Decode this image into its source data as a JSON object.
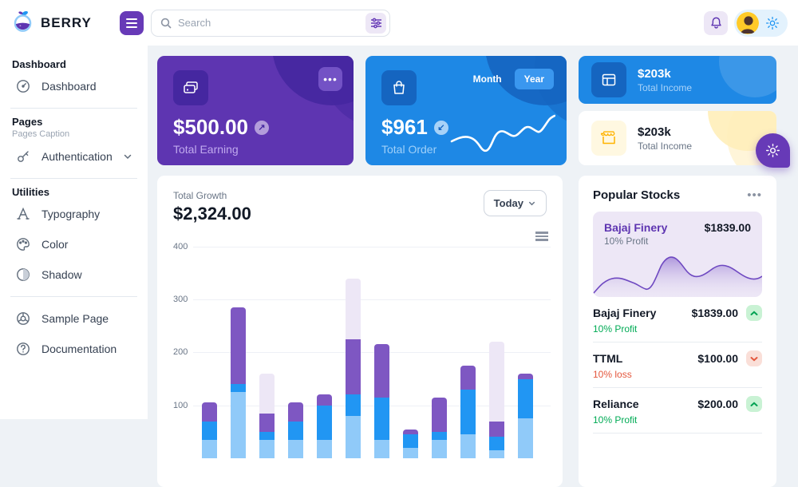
{
  "brand": {
    "name": "BERRY"
  },
  "topbar": {
    "search_placeholder": "Search"
  },
  "sidebar": {
    "groups": [
      {
        "title": "Dashboard",
        "items": [
          {
            "label": "Dashboard"
          }
        ]
      },
      {
        "title": "Pages",
        "caption": "Pages Caption",
        "items": [
          {
            "label": "Authentication"
          }
        ]
      },
      {
        "title": "Utilities",
        "items": [
          {
            "label": "Typography"
          },
          {
            "label": "Color"
          },
          {
            "label": "Shadow"
          }
        ]
      },
      {
        "items": [
          {
            "label": "Sample Page"
          },
          {
            "label": "Documentation"
          }
        ]
      }
    ]
  },
  "cards": {
    "earning": {
      "value": "$500.00",
      "label": "Total Earning"
    },
    "order": {
      "value": "$961",
      "label": "Total Order",
      "toggle": [
        "Month",
        "Year"
      ],
      "active_toggle": "Year"
    },
    "income_dark": {
      "value": "$203k",
      "label": "Total Income"
    },
    "income_light": {
      "value": "$203k",
      "label": "Total Income"
    }
  },
  "growth": {
    "title": "Total Growth",
    "value": "$2,324.00",
    "range_label": "Today"
  },
  "chart_data": {
    "type": "bar",
    "stacked": true,
    "bar_count": 12,
    "ylim": [
      0,
      400
    ],
    "yticks": [
      100,
      200,
      300,
      400
    ],
    "grid": true,
    "series": [
      {
        "color": "#90caf9",
        "values": [
          35,
          125,
          35,
          35,
          35,
          80,
          35,
          20,
          35,
          45,
          15,
          75
        ]
      },
      {
        "color": "#2196f3",
        "values": [
          35,
          15,
          15,
          35,
          65,
          40,
          80,
          25,
          15,
          85,
          25,
          75
        ]
      },
      {
        "color": "#7e57c2",
        "values": [
          35,
          145,
          35,
          35,
          20,
          105,
          100,
          10,
          65,
          45,
          30,
          10
        ]
      },
      {
        "color": "#ede7f6",
        "values": [
          0,
          0,
          75,
          0,
          0,
          115,
          0,
          0,
          0,
          0,
          150,
          0
        ]
      }
    ]
  },
  "stocks": {
    "title": "Popular Stocks",
    "featured": {
      "name": "Bajaj Finery",
      "price": "$1839.00",
      "change": "10% Profit"
    },
    "items": [
      {
        "name": "Bajaj Finery",
        "price": "$1839.00",
        "change": "10% Profit",
        "direction": "up"
      },
      {
        "name": "TTML",
        "price": "$100.00",
        "change": "10% loss",
        "direction": "down"
      },
      {
        "name": "Reliance",
        "price": "$200.00",
        "change": "10% Profit",
        "direction": "up"
      }
    ]
  },
  "colors": {
    "brand_purple": "#673ab7",
    "purple_dark": "#5e35b1",
    "purple_deep": "#4527a0",
    "blue": "#2196f3",
    "blue_dark": "#1e88e5",
    "blue_deep": "#1565c0",
    "warning": "#ffc107",
    "success": "#00ab55",
    "error": "#e4573d",
    "page_bg": "#eef2f6",
    "lavender": "#ede7f6"
  }
}
